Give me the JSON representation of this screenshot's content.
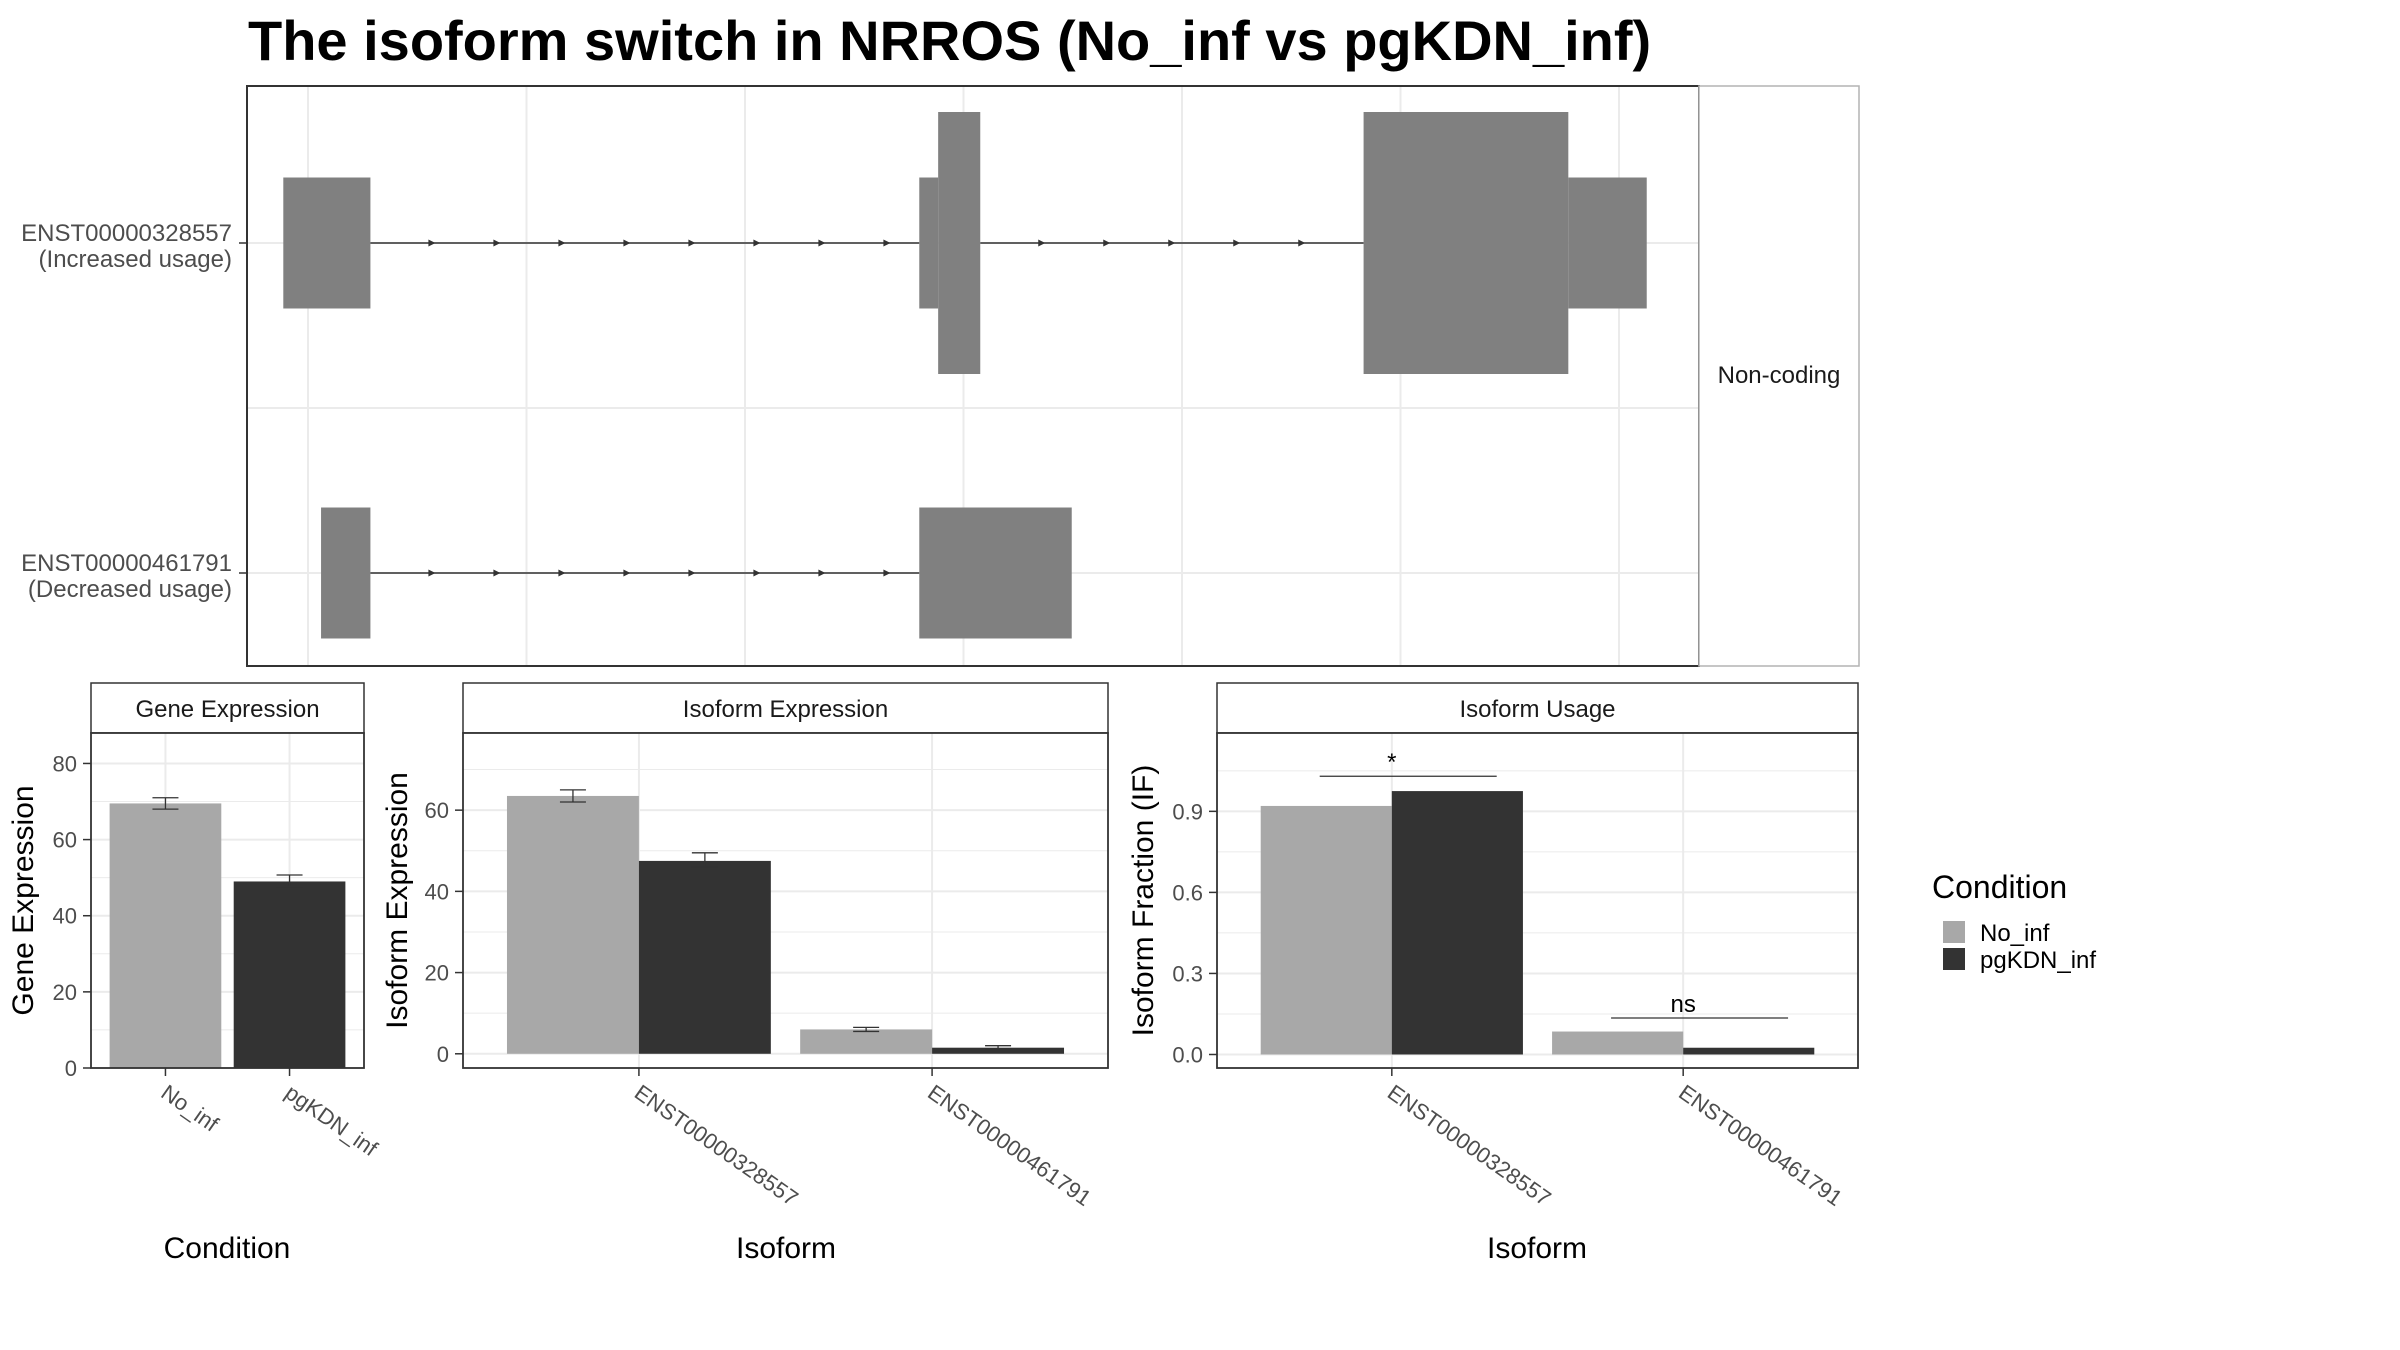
{
  "title": "The isoform switch in NRROS (No_inf vs pgKDN_inf)",
  "colors": {
    "exon": "#808080",
    "no_inf": "#a8a8a8",
    "pgkdn_inf": "#333333",
    "grid": "#ebebeb",
    "panel_border": "#333333"
  },
  "structure": {
    "strip_label": "Non-coding",
    "isoforms": [
      {
        "id": "ENST00000328557",
        "label_line1": "ENST00000328557",
        "label_line2": "(Increased usage)",
        "exons": [
          {
            "start": 0.025,
            "end": 0.085,
            "h": 0.5
          },
          {
            "start": 0.463,
            "end": 0.476,
            "h": 0.5
          },
          {
            "start": 0.476,
            "end": 0.505,
            "h": 1.0
          },
          {
            "start": 0.769,
            "end": 0.91,
            "h": 1.0
          },
          {
            "start": 0.91,
            "end": 0.964,
            "h": 0.5
          }
        ]
      },
      {
        "id": "ENST00000461791",
        "label_line1": "ENST00000461791",
        "label_line2": "(Decreased usage)",
        "exons": [
          {
            "start": 0.051,
            "end": 0.085,
            "h": 0.5
          },
          {
            "start": 0.463,
            "end": 0.568,
            "h": 0.5
          }
        ]
      }
    ]
  },
  "chart_data": [
    {
      "type": "bar",
      "panel": "Gene Expression",
      "categories": [
        "No_inf",
        "pgKDN_inf"
      ],
      "values": [
        69.5,
        49
      ],
      "errors": [
        [
          68,
          71
        ],
        [
          47.5,
          50.7
        ]
      ],
      "xlabel": "Condition",
      "ylabel": "Gene Expression",
      "ylim": [
        0,
        88
      ],
      "yticks": [
        0,
        20,
        40,
        60,
        80
      ]
    },
    {
      "type": "bar",
      "panel": "Isoform Expression",
      "categories": [
        "ENST00000328557",
        "ENST00000461791"
      ],
      "series": [
        {
          "name": "No_inf",
          "values": [
            63.5,
            6
          ],
          "errors": [
            [
              62,
              65
            ],
            [
              5.5,
              6.5
            ]
          ]
        },
        {
          "name": "pgKDN_inf",
          "values": [
            47.5,
            1.5
          ],
          "errors": [
            [
              46,
              49.5
            ],
            [
              1.2,
              2.0
            ]
          ]
        }
      ],
      "xlabel": "Isoform",
      "ylabel": "Isoform Expression",
      "ylim": [
        -3.5,
        79
      ],
      "yticks": [
        0,
        20,
        40,
        60
      ]
    },
    {
      "type": "bar",
      "panel": "Isoform Usage",
      "categories": [
        "ENST00000328557",
        "ENST00000461791"
      ],
      "series": [
        {
          "name": "No_inf",
          "values": [
            0.92,
            0.085
          ]
        },
        {
          "name": "pgKDN_inf",
          "values": [
            0.975,
            0.025
          ]
        }
      ],
      "significance": [
        {
          "label": "*",
          "y": 1.03
        },
        {
          "label": "ns",
          "y": 0.135
        }
      ],
      "xlabel": "Isoform",
      "ylabel": "Isoform Fraction (IF)",
      "ylim": [
        -0.05,
        1.19
      ],
      "yticks": [
        0.0,
        0.3,
        0.6,
        0.9
      ],
      "ytick_labels": [
        "0.0",
        "0.3",
        "0.6",
        "0.9"
      ]
    }
  ],
  "legend": {
    "title": "Condition",
    "items": [
      {
        "name": "No_inf",
        "color": "#a8a8a8"
      },
      {
        "name": "pgKDN_inf",
        "color": "#333333"
      }
    ]
  }
}
